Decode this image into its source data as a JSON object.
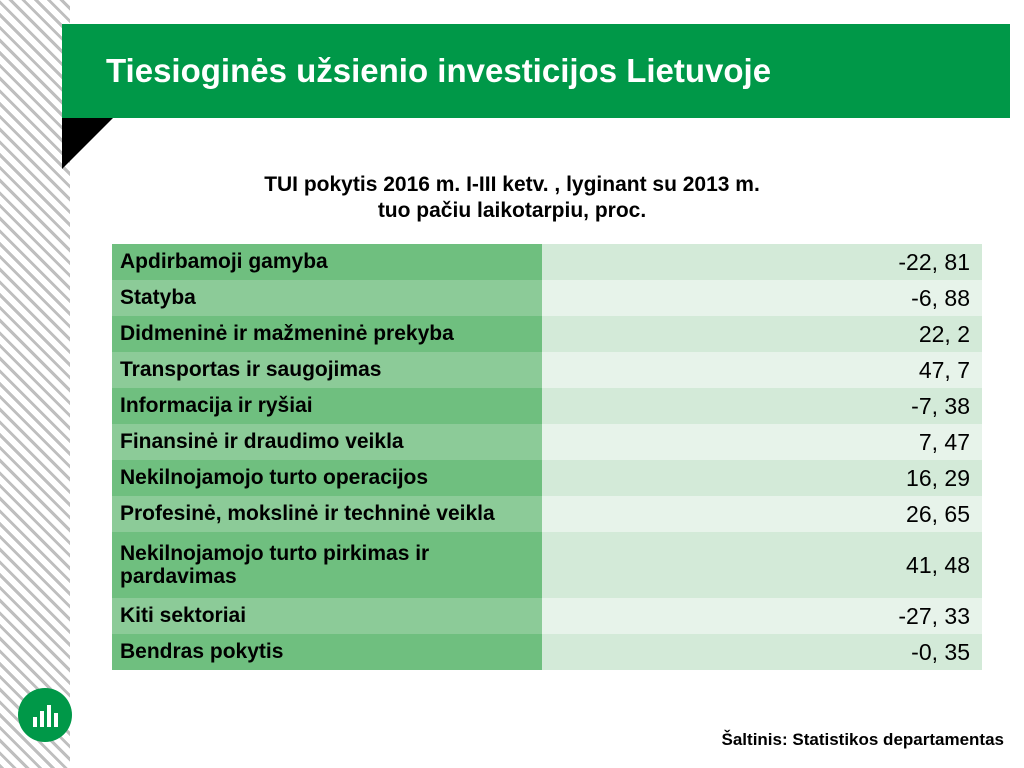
{
  "title": "Tiesioginės užsienio investicijos Lietuvoje",
  "subtitle_l1": "TUI pokytis 2016 m. I-III ketv. , lyginant su 2013 m.",
  "subtitle_l2": "tuo pačiu laikotarpiu, proc.",
  "source": "Šaltinis: Statistikos departamentas",
  "colors": {
    "brand": "#009848",
    "row_label_a": "#6fbf7f",
    "row_label_b": "#8ccb98",
    "row_val_a": "#d3ead8",
    "row_val_b": "#e7f3ea"
  },
  "table": {
    "rows": [
      {
        "label": "Apdirbamoji gamyba",
        "value": "-22, 81",
        "tall": false
      },
      {
        "label": "Statyba",
        "value": "-6, 88",
        "tall": false
      },
      {
        "label": "Didmeninė ir mažmeninė prekyba",
        "value": "22, 2",
        "tall": false
      },
      {
        "label": "Transportas ir saugojimas",
        "value": "47, 7",
        "tall": false
      },
      {
        "label": "Informacija ir ryšiai",
        "value": "-7, 38",
        "tall": false
      },
      {
        "label": "Finansinė ir draudimo veikla",
        "value": "7, 47",
        "tall": false
      },
      {
        "label": "Nekilnojamojo turto operacijos",
        "value": "16, 29",
        "tall": false
      },
      {
        "label": "Profesinė, mokslinė ir techninė veikla",
        "value": "26, 65",
        "tall": false
      },
      {
        "label": "Nekilnojamojo turto pirkimas ir pardavimas",
        "value": "41, 48",
        "tall": true
      },
      {
        "label": "Kiti sektoriai",
        "value": "-27, 33",
        "tall": false
      },
      {
        "label": "Bendras pokytis",
        "value": "-0, 35",
        "tall": false
      }
    ]
  }
}
